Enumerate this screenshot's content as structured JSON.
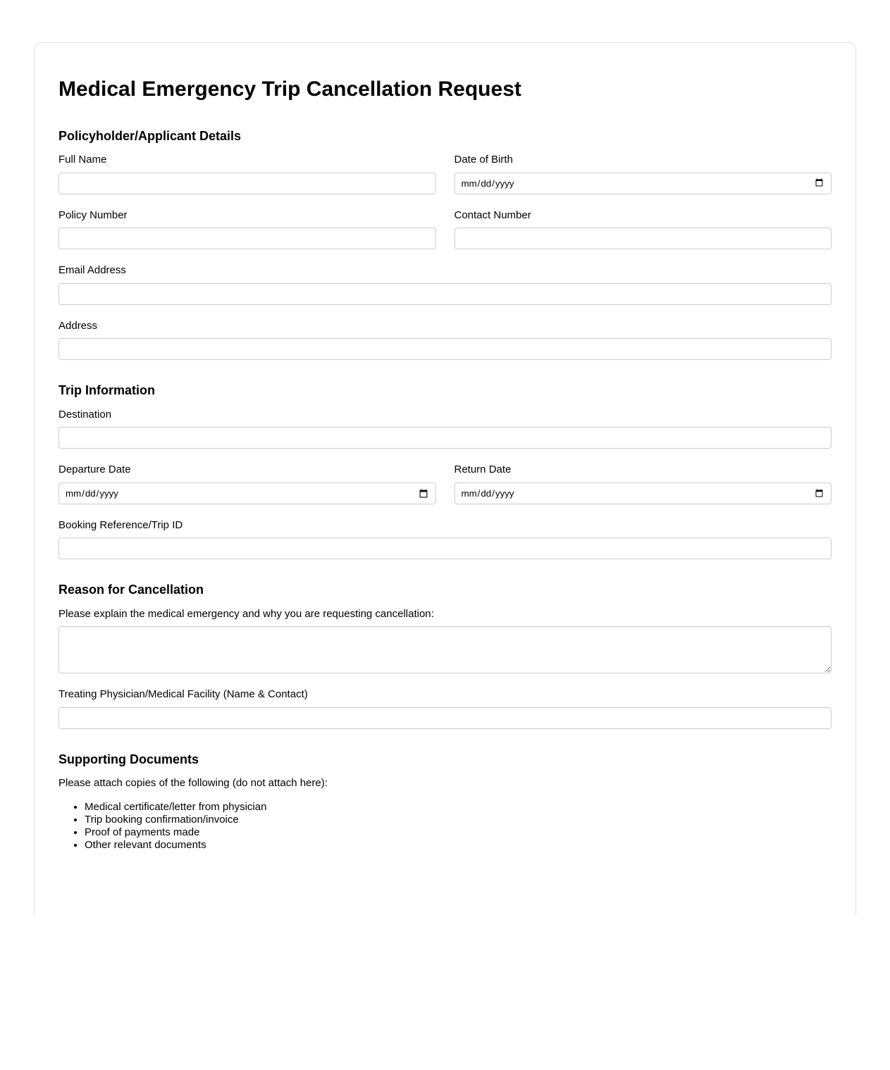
{
  "form": {
    "title": "Medical Emergency Trip Cancellation Request"
  },
  "policyholder": {
    "heading": "Policyholder/Applicant Details",
    "full_name": {
      "label": "Full Name",
      "value": ""
    },
    "date_of_birth": {
      "label": "Date of Birth",
      "value": "",
      "placeholder": "mm/dd/yyyy",
      "calendar_icon": "calendar-icon"
    },
    "policy_number": {
      "label": "Policy Number",
      "value": ""
    },
    "contact_number": {
      "label": "Contact Number",
      "value": ""
    },
    "email": {
      "label": "Email Address",
      "value": ""
    },
    "address": {
      "label": "Address",
      "value": ""
    }
  },
  "trip": {
    "heading": "Trip Information",
    "destination": {
      "label": "Destination",
      "value": ""
    },
    "departure_date": {
      "label": "Departure Date",
      "value": "",
      "placeholder": "mm/dd/yyyy",
      "calendar_icon": "calendar-icon"
    },
    "return_date": {
      "label": "Return Date",
      "value": "",
      "placeholder": "mm/dd/yyyy",
      "calendar_icon": "calendar-icon"
    },
    "booking_reference": {
      "label": "Booking Reference/Trip ID",
      "value": ""
    }
  },
  "reason": {
    "heading": "Reason for Cancellation",
    "explanation": {
      "label": "Please explain the medical emergency and why you are requesting cancellation:",
      "value": ""
    },
    "physician": {
      "label": "Treating Physician/Medical Facility (Name & Contact)",
      "value": ""
    }
  },
  "documents": {
    "heading": "Supporting Documents",
    "intro": "Please attach copies of the following (do not attach here):",
    "items": [
      "Medical certificate/letter from physician",
      "Trip booking confirmation/invoice",
      "Proof of payments made",
      "Other relevant documents"
    ]
  }
}
